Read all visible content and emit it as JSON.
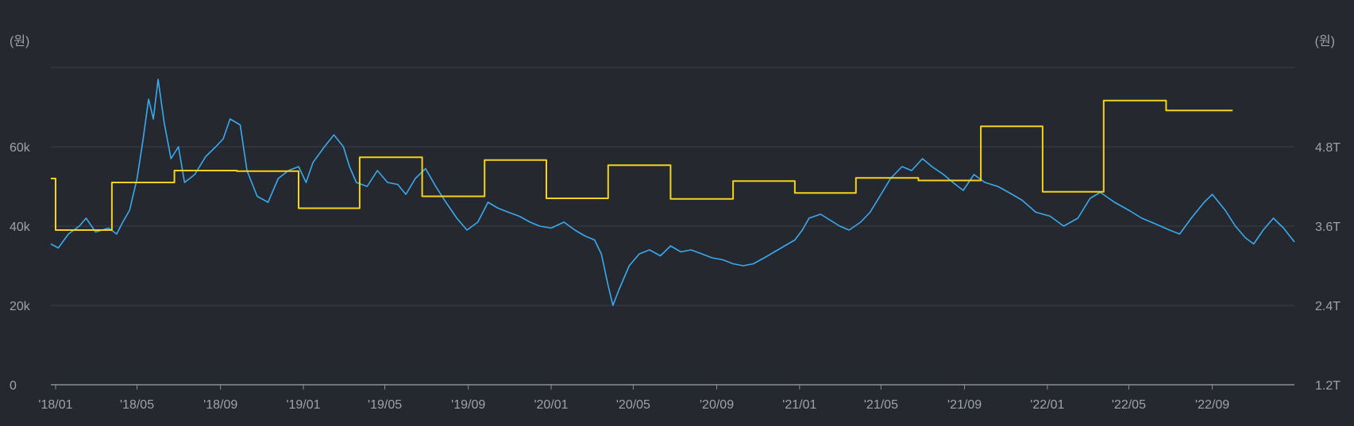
{
  "chart_data": {
    "type": "line",
    "title": "",
    "xlabel": "",
    "y_left": {
      "unit_label": "(원)",
      "ticks": [
        "0",
        "20k",
        "40k",
        "60k"
      ],
      "tick_values": [
        0,
        20000,
        40000,
        60000
      ],
      "range": [
        0,
        80000
      ]
    },
    "y_right": {
      "unit_label": "(원)",
      "ticks": [
        "1.2T",
        "2.4T",
        "3.6T",
        "4.8T"
      ],
      "tick_values": [
        1.2,
        2.4,
        3.6,
        4.8
      ],
      "range": [
        1.2,
        6.0
      ],
      "unit": "T"
    },
    "x_axis": {
      "range": [
        "2017-12-25",
        "2022-12-31"
      ],
      "ticks": [
        {
          "label": "'18/01",
          "date": "2018-01-01"
        },
        {
          "label": "'18/05",
          "date": "2018-05-01"
        },
        {
          "label": "'18/09",
          "date": "2018-09-01"
        },
        {
          "label": "'19/01",
          "date": "2019-01-01"
        },
        {
          "label": "'19/05",
          "date": "2019-05-01"
        },
        {
          "label": "'19/09",
          "date": "2019-09-01"
        },
        {
          "label": "'20/01",
          "date": "2020-01-01"
        },
        {
          "label": "'20/05",
          "date": "2020-05-01"
        },
        {
          "label": "'20/09",
          "date": "2020-09-01"
        },
        {
          "label": "'21/01",
          "date": "2021-01-01"
        },
        {
          "label": "'21/05",
          "date": "2021-05-01"
        },
        {
          "label": "'21/09",
          "date": "2021-09-01"
        },
        {
          "label": "'22/01",
          "date": "2022-01-01"
        },
        {
          "label": "'22/05",
          "date": "2022-05-01"
        },
        {
          "label": "'22/09",
          "date": "2022-09-01"
        }
      ]
    },
    "grid": true,
    "series": [
      {
        "axis": "left",
        "color": "#3aaaf0",
        "style": "line",
        "points": [
          [
            "2017-12-25",
            35500
          ],
          [
            "2018-01-05",
            34500
          ],
          [
            "2018-01-20",
            38000
          ],
          [
            "2018-02-05",
            40000
          ],
          [
            "2018-02-15",
            42000
          ],
          [
            "2018-03-01",
            38500
          ],
          [
            "2018-03-20",
            39500
          ],
          [
            "2018-04-01",
            38000
          ],
          [
            "2018-04-10",
            41000
          ],
          [
            "2018-04-20",
            44000
          ],
          [
            "2018-05-01",
            52000
          ],
          [
            "2018-05-10",
            62000
          ],
          [
            "2018-05-18",
            72000
          ],
          [
            "2018-05-25",
            67000
          ],
          [
            "2018-06-01",
            77000
          ],
          [
            "2018-06-10",
            66000
          ],
          [
            "2018-06-20",
            57000
          ],
          [
            "2018-07-01",
            60000
          ],
          [
            "2018-07-10",
            51000
          ],
          [
            "2018-07-25",
            53000
          ],
          [
            "2018-08-10",
            57500
          ],
          [
            "2018-08-25",
            60000
          ],
          [
            "2018-09-05",
            62000
          ],
          [
            "2018-09-15",
            67000
          ],
          [
            "2018-09-30",
            65500
          ],
          [
            "2018-10-10",
            54000
          ],
          [
            "2018-10-25",
            47500
          ],
          [
            "2018-11-10",
            46000
          ],
          [
            "2018-11-25",
            52000
          ],
          [
            "2018-12-10",
            54000
          ],
          [
            "2018-12-25",
            55000
          ],
          [
            "2019-01-05",
            51000
          ],
          [
            "2019-01-15",
            56000
          ],
          [
            "2019-02-01",
            60000
          ],
          [
            "2019-02-15",
            63000
          ],
          [
            "2019-03-01",
            60000
          ],
          [
            "2019-03-10",
            55000
          ],
          [
            "2019-03-20",
            51000
          ],
          [
            "2019-04-05",
            50000
          ],
          [
            "2019-04-20",
            54000
          ],
          [
            "2019-05-05",
            51000
          ],
          [
            "2019-05-20",
            50500
          ],
          [
            "2019-06-01",
            48000
          ],
          [
            "2019-06-15",
            52000
          ],
          [
            "2019-06-30",
            54500
          ],
          [
            "2019-07-15",
            50000
          ],
          [
            "2019-07-30",
            46000
          ],
          [
            "2019-08-15",
            42000
          ],
          [
            "2019-08-30",
            39000
          ],
          [
            "2019-09-15",
            41000
          ],
          [
            "2019-09-30",
            46000
          ],
          [
            "2019-10-15",
            44500
          ],
          [
            "2019-10-30",
            43500
          ],
          [
            "2019-11-15",
            42500
          ],
          [
            "2019-12-01",
            41000
          ],
          [
            "2019-12-15",
            40000
          ],
          [
            "2020-01-01",
            39500
          ],
          [
            "2020-01-20",
            41000
          ],
          [
            "2020-02-05",
            39000
          ],
          [
            "2020-02-20",
            37500
          ],
          [
            "2020-03-05",
            36500
          ],
          [
            "2020-03-15",
            33000
          ],
          [
            "2020-03-25",
            25000
          ],
          [
            "2020-04-01",
            20000
          ],
          [
            "2020-04-10",
            24000
          ],
          [
            "2020-04-25",
            30000
          ],
          [
            "2020-05-10",
            33000
          ],
          [
            "2020-05-25",
            34000
          ],
          [
            "2020-06-10",
            32500
          ],
          [
            "2020-06-25",
            35000
          ],
          [
            "2020-07-10",
            33500
          ],
          [
            "2020-07-25",
            34000
          ],
          [
            "2020-08-10",
            33000
          ],
          [
            "2020-08-25",
            32000
          ],
          [
            "2020-09-10",
            31500
          ],
          [
            "2020-09-25",
            30500
          ],
          [
            "2020-10-10",
            30000
          ],
          [
            "2020-10-25",
            30500
          ],
          [
            "2020-11-10",
            32000
          ],
          [
            "2020-11-25",
            33500
          ],
          [
            "2020-12-10",
            35000
          ],
          [
            "2020-12-25",
            36500
          ],
          [
            "2021-01-05",
            39000
          ],
          [
            "2021-01-15",
            42000
          ],
          [
            "2021-02-01",
            43000
          ],
          [
            "2021-02-15",
            41500
          ],
          [
            "2021-03-01",
            40000
          ],
          [
            "2021-03-15",
            39000
          ],
          [
            "2021-04-01",
            41000
          ],
          [
            "2021-04-15",
            43500
          ],
          [
            "2021-05-01",
            48000
          ],
          [
            "2021-05-15",
            52000
          ],
          [
            "2021-06-01",
            55000
          ],
          [
            "2021-06-15",
            54000
          ],
          [
            "2021-07-01",
            57000
          ],
          [
            "2021-07-15",
            55000
          ],
          [
            "2021-08-01",
            53000
          ],
          [
            "2021-08-15",
            51000
          ],
          [
            "2021-08-30",
            49000
          ],
          [
            "2021-09-15",
            53000
          ],
          [
            "2021-10-01",
            51000
          ],
          [
            "2021-10-20",
            50000
          ],
          [
            "2021-11-05",
            48500
          ],
          [
            "2021-11-25",
            46500
          ],
          [
            "2021-12-15",
            43500
          ],
          [
            "2022-01-05",
            42500
          ],
          [
            "2022-01-25",
            40000
          ],
          [
            "2022-02-15",
            42000
          ],
          [
            "2022-03-05",
            47000
          ],
          [
            "2022-03-20",
            48500
          ],
          [
            "2022-04-10",
            46000
          ],
          [
            "2022-05-01",
            44000
          ],
          [
            "2022-05-20",
            42000
          ],
          [
            "2022-06-10",
            40500
          ],
          [
            "2022-06-30",
            39000
          ],
          [
            "2022-07-15",
            38000
          ],
          [
            "2022-08-01",
            42000
          ],
          [
            "2022-08-20",
            46000
          ],
          [
            "2022-09-01",
            48000
          ],
          [
            "2022-09-20",
            44000
          ],
          [
            "2022-10-05",
            40000
          ],
          [
            "2022-10-20",
            37000
          ],
          [
            "2022-11-01",
            35500
          ],
          [
            "2022-11-15",
            39000
          ],
          [
            "2022-11-30",
            42000
          ],
          [
            "2022-12-15",
            39500
          ],
          [
            "2022-12-31",
            36000
          ]
        ]
      },
      {
        "axis": "right",
        "color": "#f5d31d",
        "style": "step",
        "points": [
          [
            "2017-12-25",
            4.32
          ],
          [
            "2018-01-01",
            3.54
          ],
          [
            "2018-03-25",
            4.26
          ],
          [
            "2018-06-25",
            4.44
          ],
          [
            "2018-09-25",
            4.43
          ],
          [
            "2018-12-25",
            3.87
          ],
          [
            "2019-03-25",
            4.64
          ],
          [
            "2019-06-25",
            4.05
          ],
          [
            "2019-09-25",
            4.6
          ],
          [
            "2019-12-25",
            4.02
          ],
          [
            "2020-03-25",
            4.52
          ],
          [
            "2020-06-25",
            4.01
          ],
          [
            "2020-09-25",
            4.28
          ],
          [
            "2020-12-25",
            4.1
          ],
          [
            "2021-03-25",
            4.33
          ],
          [
            "2021-06-25",
            4.29
          ],
          [
            "2021-09-25",
            5.11
          ],
          [
            "2021-12-25",
            4.12
          ],
          [
            "2022-03-25",
            5.5
          ],
          [
            "2022-06-25",
            5.35
          ],
          [
            "2022-10-01",
            5.35
          ]
        ]
      }
    ]
  }
}
